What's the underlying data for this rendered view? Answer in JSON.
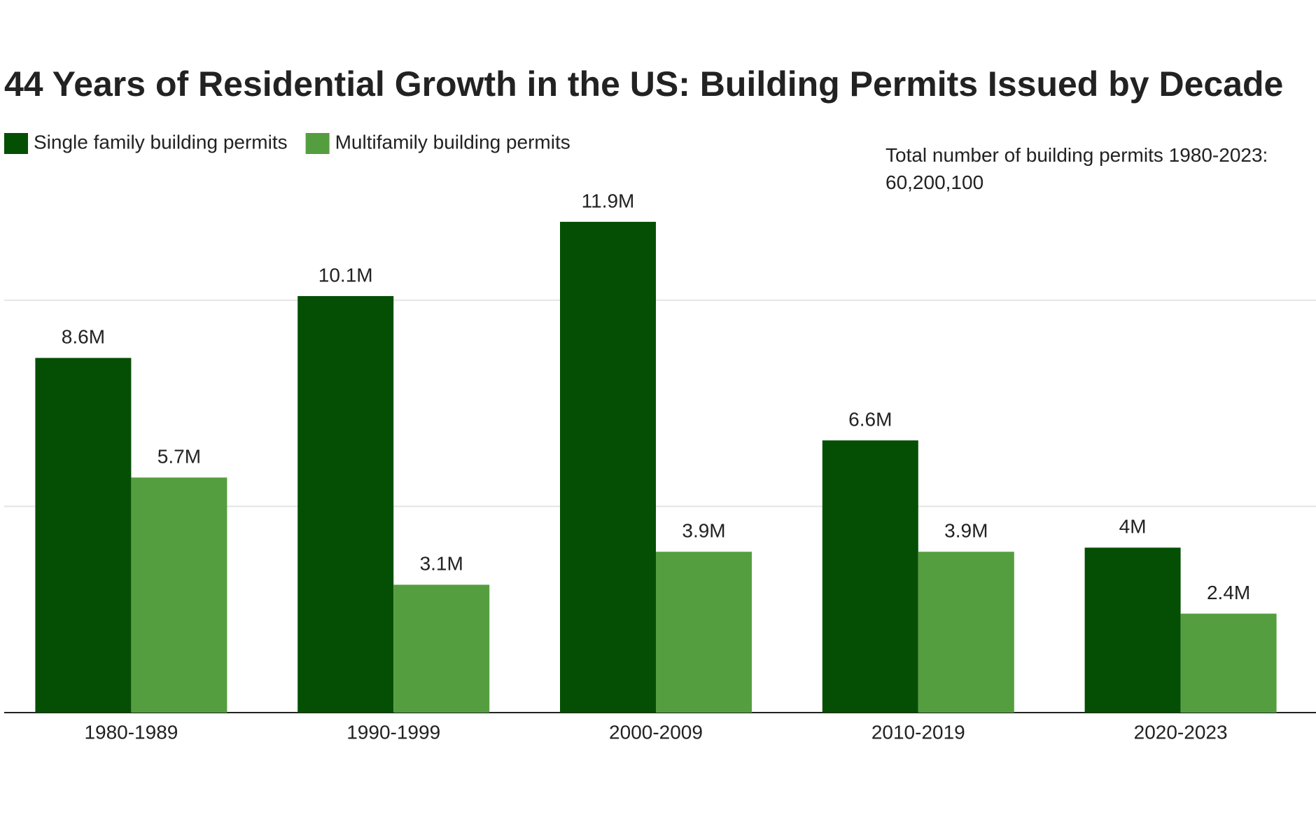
{
  "chart_data": {
    "type": "bar",
    "title": "44 Years of Residential Growth in the US: Building Permits Issued by Decade",
    "annotation": "Total number of building permits 1980-2023: 60,200,100",
    "categories": [
      "1980-1989",
      "1990-1999",
      "2000-2009",
      "2010-2019",
      "2020-2023"
    ],
    "series": [
      {
        "name": "Single family building permits",
        "color": "#054f05",
        "values": [
          8.6,
          10.1,
          11.9,
          6.6,
          4
        ],
        "value_labels": [
          "8.6M",
          "10.1M",
          "11.9M",
          "6.6M",
          "4M"
        ]
      },
      {
        "name": "Multifamily building permits",
        "color": "#559e40",
        "values": [
          5.7,
          3.1,
          3.9,
          3.9,
          2.4
        ],
        "value_labels": [
          "5.7M",
          "3.1M",
          "3.9M",
          "3.9M",
          "2.4M"
        ]
      }
    ],
    "ylim": [
      0,
      12
    ],
    "yticks": [
      0,
      5,
      10
    ],
    "grid": true
  }
}
